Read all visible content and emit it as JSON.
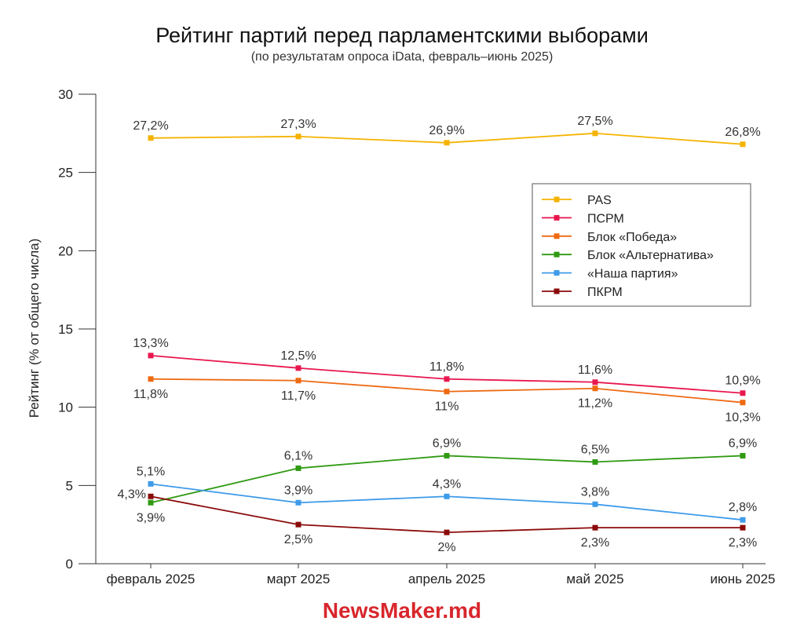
{
  "header": {
    "title": "Рейтинг партий перед парламентскими выборами",
    "subtitle": "(по результатам опроса iData, февраль–июнь 2025)"
  },
  "brand": "NewsMaker.md",
  "chart_data": {
    "type": "line",
    "title": "Рейтинг партий перед парламентскими выборами",
    "subtitle": "(по результатам опроса iData, февраль–июнь 2025)",
    "xlabel": "",
    "ylabel": "Рейтинг (% от общего числа)",
    "ylim": [
      0,
      30
    ],
    "yticks": [
      "0",
      "5",
      "10",
      "15",
      "20",
      "25",
      "30"
    ],
    "grid": false,
    "legend_position": "right",
    "categories": [
      "февраль 2025",
      "март 2025",
      "апрель 2025",
      "май 2025",
      "июнь 2025"
    ],
    "series": [
      {
        "name": "PAS",
        "color": "#f5b300",
        "values": [
          27.2,
          27.3,
          26.9,
          27.5,
          26.8
        ],
        "labels": [
          "27,2%",
          "27,3%",
          "26,9%",
          "27,5%",
          "26,8%"
        ],
        "label_pos": [
          "above",
          "above",
          "above",
          "above",
          "above"
        ]
      },
      {
        "name": "ПСРМ",
        "color": "#e8174f",
        "values": [
          13.3,
          12.5,
          11.8,
          11.6,
          10.9
        ],
        "labels": [
          "13,3%",
          "12,5%",
          "11,8%",
          "11,6%",
          "10,9%"
        ],
        "label_pos": [
          "above",
          "above",
          "above",
          "above",
          "above"
        ]
      },
      {
        "name": "Блок «Победа»",
        "color": "#ed6a12",
        "values": [
          11.8,
          11.7,
          11.0,
          11.2,
          10.3
        ],
        "labels": [
          "11,8%",
          "11,7%",
          "11%",
          "11,2%",
          "10,3%"
        ],
        "label_pos": [
          "below",
          "below",
          "below",
          "below",
          "below"
        ]
      },
      {
        "name": "Блок «Альтернатива»",
        "color": "#2f9a12",
        "values": [
          3.9,
          6.1,
          6.9,
          6.5,
          6.9
        ],
        "labels": [
          "3,9%",
          "6,1%",
          "6,9%",
          "6,5%",
          "6,9%"
        ],
        "label_pos": [
          "below",
          "above",
          "above",
          "above",
          "above"
        ]
      },
      {
        "name": "«Наша партия»",
        "color": "#3d9be9",
        "values": [
          5.1,
          3.9,
          4.3,
          3.8,
          2.8
        ],
        "labels": [
          "5,1%",
          "3,9%",
          "4,3%",
          "3,8%",
          "2,8%"
        ],
        "label_pos": [
          "above",
          "above",
          "above",
          "above",
          "above"
        ]
      },
      {
        "name": "ПКРМ",
        "color": "#8b0a0a",
        "values": [
          4.3,
          2.5,
          2.0,
          2.3,
          2.3
        ],
        "labels": [
          "4,3%",
          "2,5%",
          "2%",
          "2,3%",
          "2,3%"
        ],
        "label_pos": [
          "left",
          "below",
          "below",
          "below",
          "below"
        ]
      }
    ]
  }
}
